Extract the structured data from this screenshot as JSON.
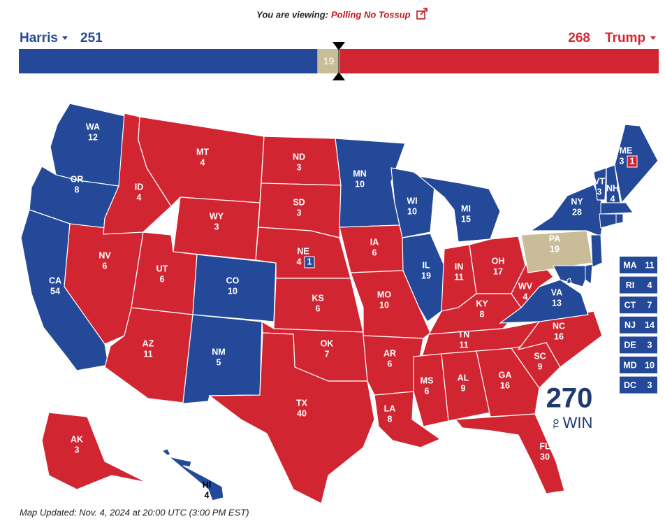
{
  "header": {
    "viewing_label": "You are viewing:",
    "viewing_value": "Polling No Tossup"
  },
  "parties": {
    "dem": {
      "name": "Harris",
      "votes": 251,
      "color": "#244999"
    },
    "rep": {
      "name": "Trump",
      "votes": 268,
      "color": "#d22532"
    },
    "tossup": {
      "votes": 19,
      "color": "#c9bc99"
    }
  },
  "states": [
    {
      "abbr": "WA",
      "ev": 12,
      "party": "dem"
    },
    {
      "abbr": "OR",
      "ev": 8,
      "party": "dem"
    },
    {
      "abbr": "CA",
      "ev": 54,
      "party": "dem"
    },
    {
      "abbr": "NV",
      "ev": 6,
      "party": "rep"
    },
    {
      "abbr": "ID",
      "ev": 4,
      "party": "rep"
    },
    {
      "abbr": "MT",
      "ev": 4,
      "party": "rep"
    },
    {
      "abbr": "WY",
      "ev": 3,
      "party": "rep"
    },
    {
      "abbr": "UT",
      "ev": 6,
      "party": "rep"
    },
    {
      "abbr": "AZ",
      "ev": 11,
      "party": "rep"
    },
    {
      "abbr": "CO",
      "ev": 10,
      "party": "dem"
    },
    {
      "abbr": "NM",
      "ev": 5,
      "party": "dem"
    },
    {
      "abbr": "ND",
      "ev": 3,
      "party": "rep"
    },
    {
      "abbr": "SD",
      "ev": 3,
      "party": "rep"
    },
    {
      "abbr": "NE",
      "ev": 4,
      "party": "rep",
      "district": {
        "ev": 1,
        "party": "dem"
      }
    },
    {
      "abbr": "KS",
      "ev": 6,
      "party": "rep"
    },
    {
      "abbr": "OK",
      "ev": 7,
      "party": "rep"
    },
    {
      "abbr": "TX",
      "ev": 40,
      "party": "rep"
    },
    {
      "abbr": "MN",
      "ev": 10,
      "party": "dem"
    },
    {
      "abbr": "IA",
      "ev": 6,
      "party": "rep"
    },
    {
      "abbr": "MO",
      "ev": 10,
      "party": "rep"
    },
    {
      "abbr": "AR",
      "ev": 6,
      "party": "rep"
    },
    {
      "abbr": "LA",
      "ev": 8,
      "party": "rep"
    },
    {
      "abbr": "WI",
      "ev": 10,
      "party": "dem"
    },
    {
      "abbr": "IL",
      "ev": 19,
      "party": "dem"
    },
    {
      "abbr": "MI",
      "ev": 15,
      "party": "dem"
    },
    {
      "abbr": "IN",
      "ev": 11,
      "party": "rep"
    },
    {
      "abbr": "OH",
      "ev": 17,
      "party": "rep"
    },
    {
      "abbr": "KY",
      "ev": 8,
      "party": "rep"
    },
    {
      "abbr": "TN",
      "ev": 11,
      "party": "rep"
    },
    {
      "abbr": "MS",
      "ev": 6,
      "party": "rep"
    },
    {
      "abbr": "AL",
      "ev": 9,
      "party": "rep"
    },
    {
      "abbr": "GA",
      "ev": 16,
      "party": "rep"
    },
    {
      "abbr": "FL",
      "ev": 30,
      "party": "rep"
    },
    {
      "abbr": "SC",
      "ev": 9,
      "party": "rep"
    },
    {
      "abbr": "NC",
      "ev": 16,
      "party": "rep"
    },
    {
      "abbr": "VA",
      "ev": 13,
      "party": "dem"
    },
    {
      "abbr": "WV",
      "ev": 4,
      "party": "rep"
    },
    {
      "abbr": "PA",
      "ev": 19,
      "party": "tossup"
    },
    {
      "abbr": "NY",
      "ev": 28,
      "party": "dem"
    },
    {
      "abbr": "VT",
      "ev": 3,
      "party": "dem"
    },
    {
      "abbr": "NH",
      "ev": 4,
      "party": "dem"
    },
    {
      "abbr": "ME",
      "ev": 3,
      "party": "dem",
      "district": {
        "ev": 1,
        "party": "rep"
      }
    },
    {
      "abbr": "AK",
      "ev": 3,
      "party": "rep"
    },
    {
      "abbr": "HI",
      "ev": 4,
      "party": "dem"
    }
  ],
  "small_states": [
    {
      "abbr": "MA",
      "ev": 11,
      "party": "dem"
    },
    {
      "abbr": "RI",
      "ev": 4,
      "party": "dem"
    },
    {
      "abbr": "CT",
      "ev": 7,
      "party": "dem"
    },
    {
      "abbr": "NJ",
      "ev": 14,
      "party": "dem"
    },
    {
      "abbr": "DE",
      "ev": 3,
      "party": "dem"
    },
    {
      "abbr": "MD",
      "ev": 10,
      "party": "dem"
    },
    {
      "abbr": "DC",
      "ev": 3,
      "party": "dem"
    }
  ],
  "logo": {
    "number": "270",
    "to": "TO",
    "win": "WIN"
  },
  "footer": "Map Updated: Nov. 4, 2024 at 20:00 UTC (3:00 PM EST)"
}
